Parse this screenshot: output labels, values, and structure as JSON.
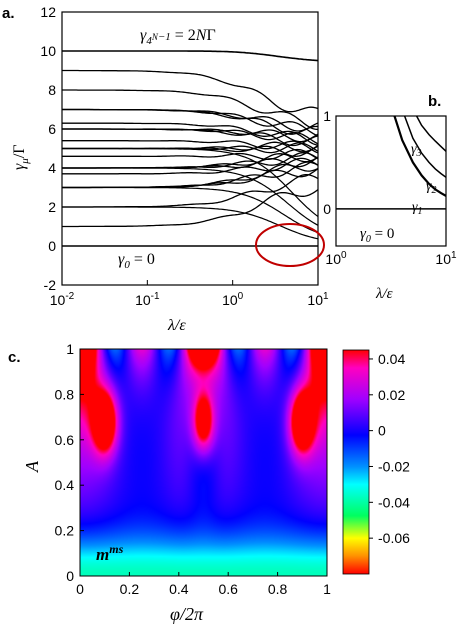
{
  "chart_data": [
    {
      "id": "a",
      "type": "line",
      "panel_label": "a.",
      "xlabel": "λ/ε",
      "ylabel": "γ_μ/Γ",
      "xscale": "log",
      "xlim": [
        0.01,
        10
      ],
      "ylim": [
        -2,
        12
      ],
      "xticks": [
        "10-2",
        "10-1",
        "100",
        "101"
      ],
      "yticks": [
        "-2",
        "0",
        "2",
        "4",
        "6",
        "8",
        "10",
        "12"
      ],
      "annotations": {
        "top": "γ4N−1 = 2NΓ",
        "bottom": "γ0 = 0"
      },
      "levels": [
        0,
        1,
        2,
        3,
        3.7,
        4,
        4.6,
        5,
        5.4,
        6,
        6.3,
        7,
        8,
        9,
        10
      ],
      "highlight_circle": {
        "x": 5,
        "y": 0.3,
        "color": "#c00000"
      },
      "grid": false
    },
    {
      "id": "b",
      "type": "line",
      "panel_label": "b.",
      "xlabel": "λ/ε",
      "xscale": "log",
      "xlim": [
        1,
        10
      ],
      "ylim": [
        -0.4,
        1
      ],
      "xticks": [
        "100",
        "101"
      ],
      "yticks": [
        "0",
        "1"
      ],
      "series": [
        {
          "name": "γ1",
          "x": [
            3.4,
            4,
            5,
            6,
            7,
            8,
            9,
            10
          ],
          "y": [
            1.0,
            0.74,
            0.5,
            0.36,
            0.27,
            0.21,
            0.17,
            0.14
          ]
        },
        {
          "name": "γ2",
          "x": [
            4.2,
            5,
            6,
            7,
            8,
            9,
            10
          ],
          "y": [
            1.0,
            0.76,
            0.6,
            0.5,
            0.43,
            0.38,
            0.34
          ]
        },
        {
          "name": "γ3",
          "x": [
            5.4,
            6,
            7,
            8,
            9,
            10
          ],
          "y": [
            1.0,
            0.9,
            0.8,
            0.73,
            0.67,
            0.62
          ]
        },
        {
          "name": "γ0",
          "x": [
            1,
            10
          ],
          "y": [
            0,
            0
          ]
        }
      ],
      "annotations": {
        "bottom": "γ0 = 0"
      },
      "grid": false
    },
    {
      "id": "c",
      "type": "heatmap",
      "panel_label": "c.",
      "xlabel": "φ/2π",
      "ylabel": "A",
      "xlim": [
        0,
        1
      ],
      "ylim": [
        0,
        1
      ],
      "xticks": [
        "0",
        "0.2",
        "0.4",
        "0.6",
        "0.8",
        "1"
      ],
      "yticks": [
        "0",
        "0.2",
        "0.4",
        "0.6",
        "0.8",
        "1"
      ],
      "label": "mms",
      "colorbar": {
        "range": [
          -0.08,
          0.045
        ],
        "ticks": [
          "0.04",
          "0.02",
          "0",
          "-0.02",
          "-0.04",
          "-0.06"
        ],
        "colors": [
          "#ff0000",
          "#ff8c00",
          "#ffff00",
          "#00ff00",
          "#00ffff",
          "#0000ff",
          "#ff00ff",
          "#ff0000"
        ]
      }
    }
  ]
}
